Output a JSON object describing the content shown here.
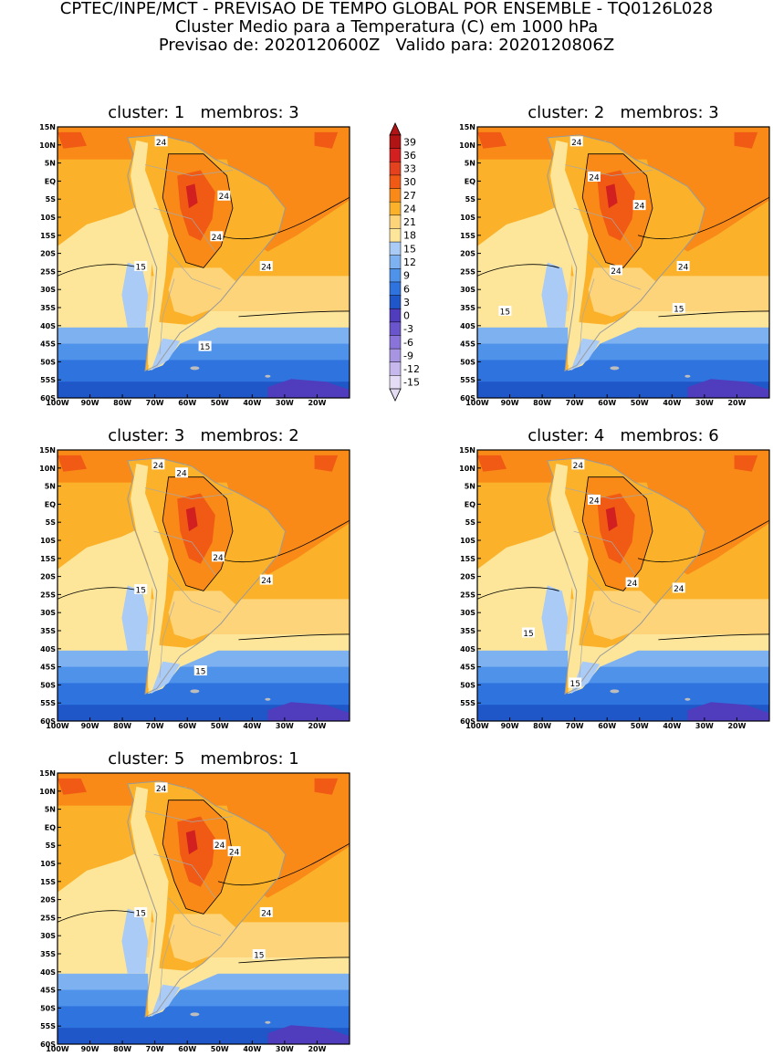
{
  "header": {
    "line1": "CPTEC/INPE/MCT - PREVISAO DE TEMPO GLOBAL POR ENSEMBLE - TQ0126L028",
    "line2": "Cluster Medio para a Temperatura (C) em 1000 hPa",
    "line3": "Previsao de: 2020120600Z   Valido para: 2020120806Z"
  },
  "axes": {
    "lat_labels": [
      "15N",
      "10N",
      "5N",
      "EQ",
      "5S",
      "10S",
      "15S",
      "20S",
      "25S",
      "30S",
      "35S",
      "40S",
      "45S",
      "50S",
      "55S",
      "60S"
    ],
    "lon_labels": [
      "100W",
      "90W",
      "80W",
      "70W",
      "60W",
      "50W",
      "40W",
      "30W",
      "20W"
    ],
    "lat_range": [
      -60,
      15
    ],
    "lon_range": [
      -100,
      -10
    ]
  },
  "colorbar": {
    "labels": [
      "39",
      "36",
      "33",
      "30",
      "27",
      "24",
      "21",
      "18",
      "15",
      "12",
      "9",
      "6",
      "3",
      "0",
      "-3",
      "-6",
      "-9",
      "-12",
      "-15"
    ],
    "colors": [
      "#b01414",
      "#d22020",
      "#e4421e",
      "#f05a14",
      "#f98a18",
      "#fbb22a",
      "#fdd47a",
      "#fde69a",
      "#a9cbf5",
      "#7eb1f0",
      "#4e92ea",
      "#2f73df",
      "#1f56c8",
      "#4f3dbd",
      "#6a55cd",
      "#8a74d9",
      "#a795e2",
      "#c6b8ec",
      "#e3dcf4"
    ]
  },
  "panels": [
    {
      "id": "1",
      "title": "cluster: 1   membros: 3",
      "contour_labels": [
        "24",
        "24",
        "24",
        "24",
        "15",
        "15"
      ]
    },
    {
      "id": "2",
      "title": "cluster: 2   membros: 3",
      "contour_labels": [
        "24",
        "24",
        "24",
        "24",
        "24",
        "15",
        "15"
      ]
    },
    {
      "id": "3",
      "title": "cluster: 3   membros: 2",
      "contour_labels": [
        "24",
        "24",
        "24",
        "24",
        "15",
        "15"
      ]
    },
    {
      "id": "4",
      "title": "cluster: 4   membros: 6",
      "contour_labels": [
        "24",
        "24",
        "24",
        "24",
        "15",
        "15"
      ]
    },
    {
      "id": "5",
      "title": "cluster: 5   membros: 1",
      "contour_labels": [
        "24",
        "24",
        "24",
        "24",
        "15",
        "15"
      ]
    }
  ]
}
